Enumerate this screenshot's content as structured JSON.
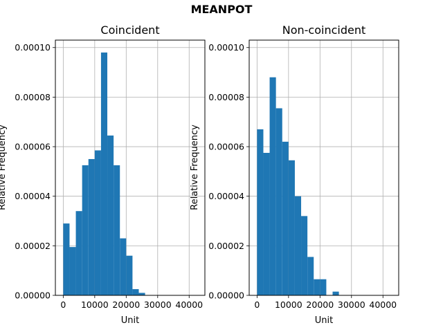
{
  "figure": {
    "title": "MEANPOT"
  },
  "chart_data": [
    {
      "type": "bar",
      "title": "Coincident",
      "xlabel": "Unit",
      "ylabel": "Relative Frequency",
      "xlim": [
        -2500,
        45000
      ],
      "ylim": [
        0,
        0.000103
      ],
      "x_ticks": [
        0,
        10000,
        20000,
        30000,
        40000
      ],
      "y_ticks": [
        0,
        2e-05,
        4e-05,
        6e-05,
        8e-05,
        0.0001
      ],
      "x_tick_labels": [
        "0",
        "10000",
        "20000",
        "30000",
        "40000"
      ],
      "y_tick_labels": [
        "0.00000",
        "0.00002",
        "0.00004",
        "0.00006",
        "0.00008",
        "0.00010"
      ],
      "grid": true,
      "bar_color": "#1f77b4",
      "bin_edges": [
        0,
        2000,
        4000,
        6000,
        8000,
        10000,
        12000,
        14000,
        16000,
        18000,
        20000,
        22000,
        24000,
        26000
      ],
      "values": [
        2.9e-05,
        1.95e-05,
        3.4e-05,
        5.25e-05,
        5.5e-05,
        5.85e-05,
        9.8e-05,
        6.45e-05,
        5.25e-05,
        2.3e-05,
        1.6e-05,
        2.5e-06,
        1e-06
      ]
    },
    {
      "type": "bar",
      "title": "Non-coincident",
      "xlabel": "Unit",
      "ylabel": "Relative Frequency",
      "xlim": [
        -2500,
        45000
      ],
      "ylim": [
        0,
        0.000103
      ],
      "x_ticks": [
        0,
        10000,
        20000,
        30000,
        40000
      ],
      "y_ticks": [
        0,
        2e-05,
        4e-05,
        6e-05,
        8e-05,
        0.0001
      ],
      "x_tick_labels": [
        "0",
        "10000",
        "20000",
        "30000",
        "40000"
      ],
      "y_tick_labels": [
        "0.00000",
        "0.00002",
        "0.00004",
        "0.00006",
        "0.00008",
        "0.00010"
      ],
      "grid": true,
      "bar_color": "#1f77b4",
      "bin_edges": [
        0,
        2000,
        4000,
        6000,
        8000,
        10000,
        12000,
        14000,
        16000,
        18000,
        20000,
        22000,
        24000,
        26000
      ],
      "values": [
        6.7e-05,
        5.75e-05,
        8.8e-05,
        7.55e-05,
        6.2e-05,
        5.45e-05,
        4e-05,
        3.2e-05,
        1.55e-05,
        6.5e-06,
        6.5e-06,
        0,
        1.5e-06
      ]
    }
  ]
}
